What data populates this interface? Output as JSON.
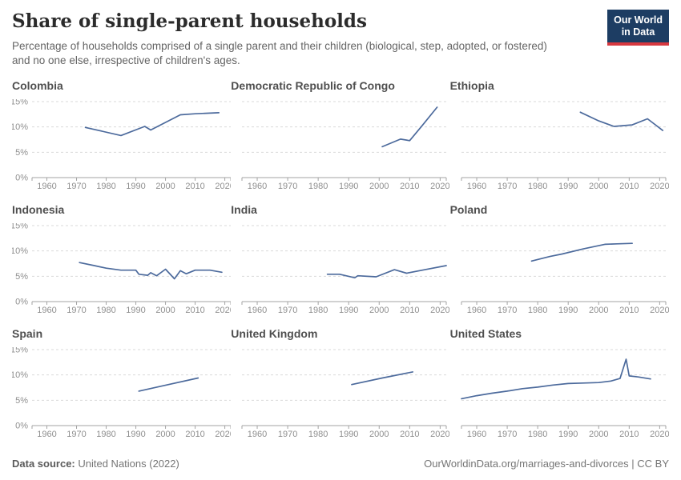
{
  "header": {
    "title": "Share of single-parent households",
    "subtitle": "Percentage of households comprised of a single parent and their children (biological, step, adopted, or fostered) and no one else, irrespective of children's ages."
  },
  "logo": {
    "line1": "Our World",
    "line2": "in Data"
  },
  "axes": {
    "xlim": [
      1955,
      2022
    ],
    "ylim": [
      0,
      16
    ],
    "x_ticks": [
      1960,
      1970,
      1980,
      1990,
      2000,
      2010,
      2020
    ],
    "y_ticks": [
      0,
      5,
      10,
      15
    ],
    "y_suffix": "%",
    "grid": "dashed horizontal"
  },
  "chart_data": [
    {
      "title": "Colombia",
      "type": "line",
      "x": [
        1973,
        1985,
        1993,
        1995,
        2000,
        2005,
        2010,
        2018
      ],
      "y": [
        9.9,
        8.3,
        10.1,
        9.4,
        10.9,
        12.4,
        12.6,
        12.8
      ]
    },
    {
      "title": "Democratic Republic of Congo",
      "type": "line",
      "x": [
        2001,
        2007,
        2010,
        2014,
        2019
      ],
      "y": [
        6.1,
        7.6,
        7.3,
        10.2,
        13.9
      ]
    },
    {
      "title": "Ethiopia",
      "type": "line",
      "x": [
        1994,
        2000,
        2005,
        2011,
        2016,
        2021
      ],
      "y": [
        12.9,
        11.2,
        10.1,
        10.4,
        11.6,
        9.3
      ]
    },
    {
      "title": "Indonesia",
      "type": "line",
      "x": [
        1971,
        1976,
        1980,
        1985,
        1990,
        1991,
        1994,
        1995,
        1997,
        2000,
        2003,
        2005,
        2007,
        2010,
        2015,
        2019
      ],
      "y": [
        7.7,
        7.1,
        6.6,
        6.2,
        6.2,
        5.4,
        5.2,
        5.7,
        5.1,
        6.4,
        4.5,
        6.1,
        5.5,
        6.2,
        6.2,
        5.8
      ]
    },
    {
      "title": "India",
      "type": "line",
      "x": [
        1983,
        1987,
        1992,
        1993,
        1999,
        2005,
        2009,
        2015,
        2022
      ],
      "y": [
        5.4,
        5.4,
        4.7,
        5.1,
        4.9,
        6.3,
        5.6,
        6.3,
        7.1
      ]
    },
    {
      "title": "Poland",
      "type": "line",
      "x": [
        1978,
        1984,
        1988,
        1995,
        2002,
        2006,
        2011
      ],
      "y": [
        8.0,
        8.9,
        9.4,
        10.4,
        11.3,
        11.4,
        11.5
      ]
    },
    {
      "title": "Spain",
      "type": "line",
      "x": [
        1991,
        2001,
        2011
      ],
      "y": [
        6.8,
        8.1,
        9.4
      ]
    },
    {
      "title": "United Kingdom",
      "type": "line",
      "x": [
        1991,
        2001,
        2011
      ],
      "y": [
        8.1,
        9.4,
        10.6
      ]
    },
    {
      "title": "United States",
      "type": "line",
      "x": [
        1955,
        1960,
        1965,
        1970,
        1975,
        1980,
        1985,
        1990,
        1995,
        2000,
        2004,
        2007,
        2009,
        2010,
        2013,
        2017
      ],
      "y": [
        5.3,
        5.9,
        6.4,
        6.8,
        7.3,
        7.6,
        8.0,
        8.3,
        8.4,
        8.5,
        8.8,
        9.3,
        13.1,
        9.8,
        9.6,
        9.2
      ]
    }
  ],
  "footer": {
    "source_label": "Data source:",
    "source_value": " United Nations (2022)",
    "credit": "OurWorldinData.org/marriages-and-divorces | CC BY"
  },
  "colors": {
    "line": "#4c6a9c",
    "logo_bg": "#1d3d63",
    "logo_accent": "#d7383f",
    "grid": "#dadada",
    "axis": "#a3a3a3",
    "tick_label": "#8f8f8f",
    "facet_title": "#4f4f4f",
    "title": "#2b2b2b",
    "subtitle": "#646464"
  }
}
